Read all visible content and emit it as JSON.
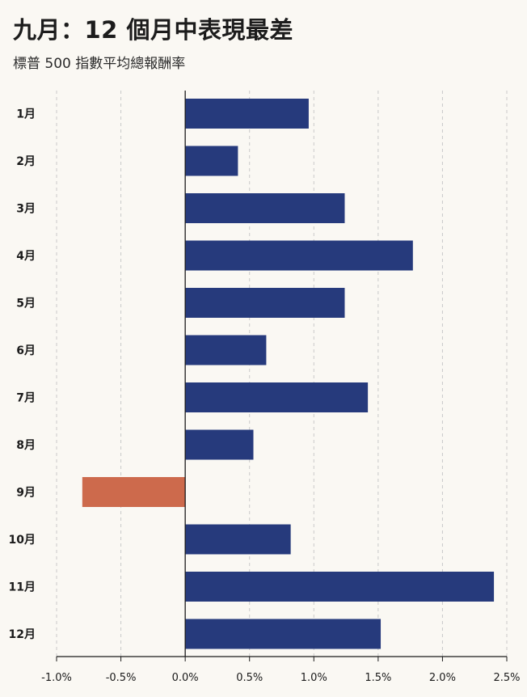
{
  "header": {
    "title": "九月：12 個月中表現最差",
    "subtitle": "標普 500 指數平均總報酬率"
  },
  "colors": {
    "positive": "#263a7c",
    "negative": "#cd6a4c",
    "background": "#faf8f3",
    "grid": "#c9c9c9"
  },
  "chart_data": {
    "type": "bar",
    "orientation": "horizontal",
    "title": "九月：12 個月中表現最差",
    "subtitle": "標普 500 指數平均總報酬率",
    "xlabel": "",
    "ylabel": "",
    "categories": [
      "1月",
      "2月",
      "3月",
      "4月",
      "5月",
      "6月",
      "7月",
      "8月",
      "9月",
      "10月",
      "11月",
      "12月"
    ],
    "values": [
      0.96,
      0.41,
      1.24,
      1.77,
      1.24,
      0.63,
      1.42,
      0.53,
      -0.8,
      0.82,
      2.4,
      1.52
    ],
    "xlim": [
      -1.0,
      2.5
    ],
    "xticks": [
      -1.0,
      -0.5,
      0.0,
      0.5,
      1.0,
      1.5,
      2.0,
      2.5
    ],
    "xtick_labels": [
      "-1.0%",
      "-0.5%",
      "0.0%",
      "0.5%",
      "1.0%",
      "1.5%",
      "2.0%",
      "2.5%"
    ],
    "grid": "vertical dashed",
    "highlight_category": "9月"
  }
}
